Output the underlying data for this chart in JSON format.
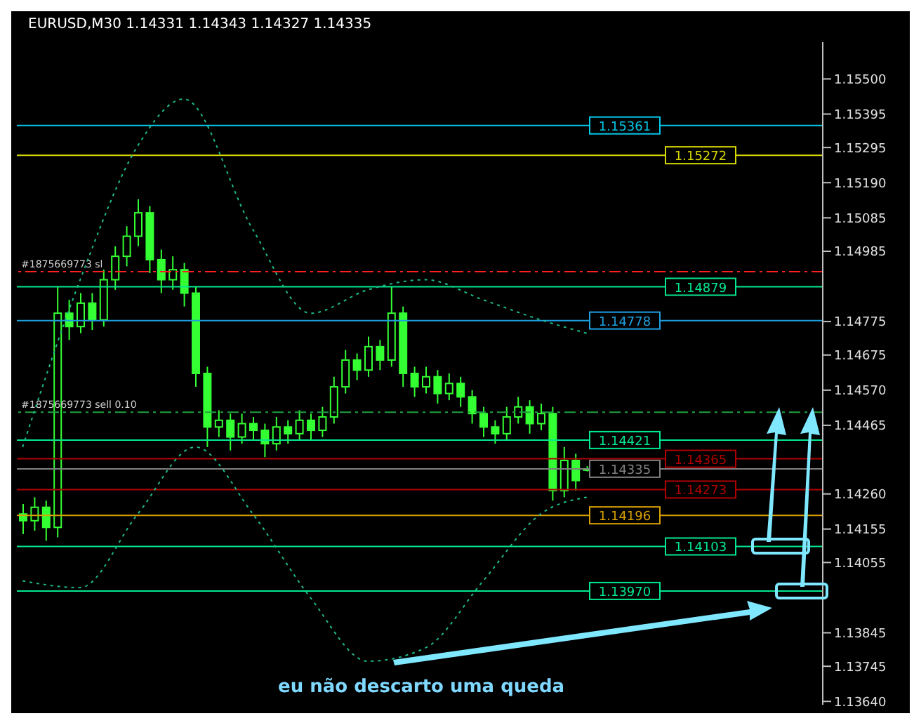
{
  "chart_data": {
    "type": "candlestick",
    "title": "EURUSD,M30  1.14331 1.14343 1.14327 1.14335",
    "categories": [
      null,
      null,
      null,
      null,
      null,
      null,
      null,
      null,
      null,
      null,
      null,
      null,
      null,
      null,
      null,
      null,
      null,
      null,
      null,
      null,
      null,
      null,
      null,
      null,
      null,
      null,
      null,
      null,
      null,
      null,
      null,
      null,
      null,
      null,
      null,
      null,
      null,
      null,
      null,
      null,
      null,
      null,
      null,
      null,
      null,
      null,
      null,
      null,
      null,
      null,
      null,
      null,
      null,
      null,
      null,
      null,
      null,
      null,
      null,
      null,
      null,
      null,
      null,
      null,
      null,
      null,
      null,
      null,
      null,
      null
    ],
    "ohlc": [
      [
        1.142,
        1.1423,
        1.1414,
        1.1418
      ],
      [
        1.1418,
        1.1425,
        1.1415,
        1.1422
      ],
      [
        1.1422,
        1.1424,
        1.1412,
        1.1416
      ],
      [
        1.1416,
        1.1488,
        1.1413,
        1.148
      ],
      [
        1.148,
        1.1484,
        1.1472,
        1.1476
      ],
      [
        1.1476,
        1.1486,
        1.1474,
        1.1483
      ],
      [
        1.1483,
        1.1486,
        1.1475,
        1.1478
      ],
      [
        1.1478,
        1.1493,
        1.1476,
        1.149
      ],
      [
        1.149,
        1.15,
        1.1487,
        1.1497
      ],
      [
        1.1497,
        1.1506,
        1.1494,
        1.1503
      ],
      [
        1.1503,
        1.1514,
        1.15,
        1.151
      ],
      [
        1.151,
        1.1512,
        1.1492,
        1.1496
      ],
      [
        1.1496,
        1.1499,
        1.1486,
        1.149
      ],
      [
        1.149,
        1.1497,
        1.1487,
        1.1493
      ],
      [
        1.1493,
        1.1495,
        1.1482,
        1.1486
      ],
      [
        1.1486,
        1.1488,
        1.1458,
        1.1462
      ],
      [
        1.1462,
        1.1464,
        1.144,
        1.1446
      ],
      [
        1.1446,
        1.1451,
        1.1443,
        1.1448
      ],
      [
        1.1448,
        1.145,
        1.1439,
        1.1443
      ],
      [
        1.1443,
        1.145,
        1.1441,
        1.1447
      ],
      [
        1.1447,
        1.1449,
        1.1442,
        1.1445
      ],
      [
        1.1445,
        1.1447,
        1.1437,
        1.1441
      ],
      [
        1.1441,
        1.1449,
        1.1439,
        1.1446
      ],
      [
        1.1446,
        1.1448,
        1.1441,
        1.1444
      ],
      [
        1.1444,
        1.1451,
        1.1442,
        1.1448
      ],
      [
        1.1448,
        1.145,
        1.1442,
        1.1445
      ],
      [
        1.1445,
        1.1452,
        1.1443,
        1.1449
      ],
      [
        1.1449,
        1.1461,
        1.1447,
        1.1458
      ],
      [
        1.1458,
        1.1469,
        1.1456,
        1.1466
      ],
      [
        1.1466,
        1.1468,
        1.146,
        1.1463
      ],
      [
        1.1463,
        1.1473,
        1.1461,
        1.147
      ],
      [
        1.147,
        1.1472,
        1.1463,
        1.1466
      ],
      [
        1.1466,
        1.1488,
        1.1464,
        1.148
      ],
      [
        1.148,
        1.1482,
        1.1458,
        1.1462
      ],
      [
        1.1462,
        1.1464,
        1.1455,
        1.1458
      ],
      [
        1.1458,
        1.1464,
        1.1456,
        1.1461
      ],
      [
        1.1461,
        1.1463,
        1.1453,
        1.1456
      ],
      [
        1.1456,
        1.1462,
        1.1454,
        1.1459
      ],
      [
        1.1459,
        1.1461,
        1.1452,
        1.1455
      ],
      [
        1.1455,
        1.1457,
        1.1447,
        1.145
      ],
      [
        1.145,
        1.1452,
        1.1443,
        1.1446
      ],
      [
        1.1446,
        1.1448,
        1.1441,
        1.1444
      ],
      [
        1.1444,
        1.1452,
        1.1442,
        1.1449
      ],
      [
        1.1449,
        1.1455,
        1.1447,
        1.1452
      ],
      [
        1.1452,
        1.1454,
        1.1444,
        1.1447
      ],
      [
        1.1447,
        1.1453,
        1.1445,
        1.145
      ],
      [
        1.145,
        1.1452,
        1.1424,
        1.1427
      ],
      [
        1.1427,
        1.144,
        1.1425,
        1.1436
      ],
      [
        1.1436,
        1.1438,
        1.1427,
        1.143
      ],
      [
        1.14331,
        1.14343,
        1.14327,
        1.14335
      ],
      null,
      null,
      null,
      null,
      null,
      null,
      null,
      null,
      null,
      null,
      null,
      null,
      null,
      null,
      null,
      null,
      null,
      null,
      null,
      null
    ],
    "color": "#33ff33",
    "series": [
      {
        "type": "line",
        "color": "#1fb98a",
        "line_style": "dotted",
        "values": [
          1.144,
          null,
          null,
          null,
          null,
          1.149,
          null,
          null,
          null,
          null,
          1.153,
          null,
          null,
          null,
          1.1544,
          null,
          null,
          null,
          null,
          null,
          1.1505,
          null,
          null,
          null,
          null,
          1.148,
          null,
          null,
          null,
          null,
          1.1487,
          null,
          null,
          null,
          null,
          1.149,
          null,
          null,
          null,
          null,
          1.1484,
          null,
          null,
          null,
          null,
          1.1478,
          null,
          null,
          null,
          1.1474,
          null,
          null,
          null,
          null,
          null,
          null,
          null,
          null,
          null,
          null,
          null,
          null,
          null,
          null,
          null,
          null,
          null,
          null,
          null,
          null
        ]
      },
      {
        "type": "line",
        "color": "#1fb98a",
        "line_style": "dotted",
        "values": [
          1.14,
          null,
          null,
          null,
          null,
          1.1398,
          null,
          null,
          null,
          null,
          1.142,
          null,
          null,
          null,
          null,
          1.144,
          null,
          null,
          null,
          null,
          1.142,
          null,
          null,
          null,
          null,
          1.1395,
          null,
          null,
          null,
          null,
          1.1376,
          null,
          null,
          null,
          null,
          1.138,
          null,
          null,
          null,
          null,
          1.14,
          null,
          null,
          null,
          null,
          1.142,
          null,
          null,
          null,
          1.1425,
          null,
          null,
          null,
          null,
          null,
          null,
          null,
          null,
          null,
          null,
          null,
          null,
          null,
          null,
          null,
          null,
          null,
          null,
          null,
          null
        ]
      }
    ],
    "ylim": [
      1.1363,
      1.1561
    ],
    "yticks": [
      {
        "value": 1.155,
        "label": "1.15500"
      },
      {
        "value": 1.15395,
        "label": "1.15395"
      },
      {
        "value": 1.15295,
        "label": "1.15295"
      },
      {
        "value": 1.1519,
        "label": "1.15190"
      },
      {
        "value": 1.15085,
        "label": "1.15085"
      },
      {
        "value": 1.14985,
        "label": "1.14985"
      },
      {
        "value": 1.14775,
        "label": "1.14775"
      },
      {
        "value": 1.14675,
        "label": "1.14675"
      },
      {
        "value": 1.1457,
        "label": "1.14570"
      },
      {
        "value": 1.14465,
        "label": "1.14465"
      },
      {
        "value": 1.1426,
        "label": "1.14260"
      },
      {
        "value": 1.14155,
        "label": "1.14155"
      },
      {
        "value": 1.14055,
        "label": "1.14055"
      },
      {
        "value": 1.13845,
        "label": "1.13845"
      },
      {
        "value": 1.13745,
        "label": "1.13745"
      },
      {
        "value": 1.1364,
        "label": "1.13640"
      }
    ],
    "ref_lines": [
      {
        "axis": "y",
        "value": 1.15361,
        "label": "1.15361",
        "color": "#00c8e8",
        "line_style": "solid"
      },
      {
        "axis": "y",
        "value": 1.15272,
        "label": "1.15272",
        "color": "#d8d800",
        "line_style": "solid"
      },
      {
        "axis": "y",
        "value": 1.14924,
        "label": "#1875669773 sl",
        "color": "#ff2020",
        "line_style": "dashed"
      },
      {
        "axis": "y",
        "value": 1.14879,
        "label": "1.14879",
        "color": "#00e890",
        "line_style": "solid"
      },
      {
        "axis": "y",
        "value": 1.14778,
        "label": "1.14778",
        "color": "#1ea0e0",
        "line_style": "solid"
      },
      {
        "axis": "y",
        "value": 1.14504,
        "label": "#1875669773 sell 0.10",
        "color": "#20a040",
        "line_style": "dashed"
      },
      {
        "axis": "y",
        "value": 1.14421,
        "label": "1.14421",
        "color": "#00e890",
        "line_style": "solid"
      },
      {
        "axis": "y",
        "value": 1.14365,
        "label": "1.14365",
        "color": "#b00000",
        "line_style": "solid"
      },
      {
        "axis": "y",
        "value": 1.14335,
        "label": "1.14335",
        "color": "#808080",
        "line_style": "solid"
      },
      {
        "axis": "y",
        "value": 1.14273,
        "label": "1.14273",
        "color": "#b00000",
        "line_style": "solid"
      },
      {
        "axis": "y",
        "value": 1.14196,
        "label": "1.14196",
        "color": "#d8a000",
        "line_style": "solid"
      },
      {
        "axis": "y",
        "value": 1.14103,
        "label": "1.14103",
        "color": "#00e890",
        "line_style": "solid"
      },
      {
        "axis": "y",
        "value": 1.1397,
        "label": "1.13970",
        "color": "#00e890",
        "line_style": "solid"
      }
    ],
    "annotations": [
      "eu não descarto uma queda"
    ]
  }
}
